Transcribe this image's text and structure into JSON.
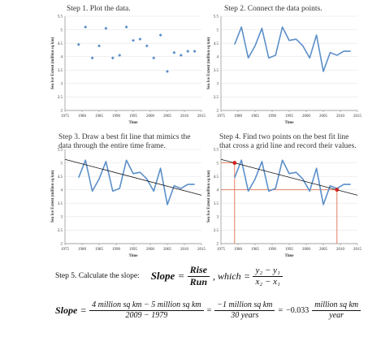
{
  "steps": [
    {
      "title_lines": [
        "Step 1. Plot the data."
      ]
    },
    {
      "title_lines": [
        "Step 2. Connect the data points."
      ]
    },
    {
      "title_lines": [
        "Step 3. Draw a best fit line that mimics the",
        "data through the entire time frame."
      ]
    },
    {
      "title_lines": [
        "Step 4. Find two points on the best fit line",
        "that cross a grid line and record their values."
      ]
    }
  ],
  "colors": {
    "data": "#5b8fc9",
    "fit_line": "#111111",
    "marker": "#d42020",
    "guide": "#e07050"
  },
  "chart_data": [
    {
      "type": "scatter",
      "title": "Step 1. Plot the data.",
      "xlabel": "Time",
      "ylabel": "Sea Ice Extent (million sq km)",
      "xlim": [
        1975,
        2015
      ],
      "ylim": [
        2,
        5.5
      ],
      "xticks": [
        1975,
        1980,
        1985,
        1990,
        1995,
        2000,
        2005,
        2010,
        2015
      ],
      "yticks": [
        2,
        2.5,
        3,
        3.5,
        4,
        4.5,
        5,
        5.5
      ],
      "series": [
        {
          "x": [
            1979,
            1981,
            1983,
            1985,
            1987,
            1989,
            1991,
            1993,
            1995,
            1997,
            1999,
            2001,
            2003,
            2005,
            2007,
            2009,
            2011,
            2013
          ],
          "y": [
            4.45,
            5.1,
            3.95,
            4.4,
            5.05,
            3.95,
            4.05,
            5.1,
            4.6,
            4.65,
            4.4,
            3.95,
            4.8,
            3.45,
            4.15,
            4.05,
            4.2,
            4.2
          ]
        }
      ]
    },
    {
      "type": "line",
      "title": "Step 2. Connect the data points.",
      "xlabel": "Time",
      "ylabel": "Sea Ice Extent (million sq km)",
      "xlim": [
        1975,
        2015
      ],
      "ylim": [
        2,
        5.5
      ],
      "xticks": [
        1975,
        1980,
        1985,
        1990,
        1995,
        2000,
        2005,
        2010,
        2015
      ],
      "yticks": [
        2,
        2.5,
        3,
        3.5,
        4,
        4.5,
        5,
        5.5
      ],
      "series": [
        {
          "x": [
            1979,
            1981,
            1983,
            1985,
            1987,
            1989,
            1991,
            1993,
            1995,
            1997,
            1999,
            2001,
            2003,
            2005,
            2007,
            2009,
            2011,
            2013
          ],
          "y": [
            4.45,
            5.1,
            3.95,
            4.4,
            5.05,
            3.95,
            4.05,
            5.1,
            4.6,
            4.65,
            4.4,
            3.95,
            4.8,
            3.45,
            4.15,
            4.05,
            4.2,
            4.2
          ]
        }
      ]
    },
    {
      "type": "line",
      "title": "Step 3. Draw a best fit line that mimics the data through the entire time frame.",
      "xlabel": "Time",
      "ylabel": "Sea Ice Extent (million sq km)",
      "xlim": [
        1975,
        2015
      ],
      "ylim": [
        2,
        5.5
      ],
      "xticks": [
        1975,
        1980,
        1985,
        1990,
        1995,
        2000,
        2005,
        2010,
        2015
      ],
      "yticks": [
        2,
        2.5,
        3,
        3.5,
        4,
        4.5,
        5,
        5.5
      ],
      "series": [
        {
          "x": [
            1979,
            1981,
            1983,
            1985,
            1987,
            1989,
            1991,
            1993,
            1995,
            1997,
            1999,
            2001,
            2003,
            2005,
            2007,
            2009,
            2011,
            2013
          ],
          "y": [
            4.45,
            5.1,
            3.95,
            4.4,
            5.05,
            3.95,
            4.05,
            5.1,
            4.6,
            4.65,
            4.4,
            3.95,
            4.8,
            3.45,
            4.15,
            4.05,
            4.2,
            4.2
          ]
        }
      ],
      "fit_line": {
        "x": [
          1975,
          2015
        ],
        "y": [
          5.13,
          3.8
        ]
      }
    },
    {
      "type": "line",
      "title": "Step 4. Find two points on the best fit line that cross a grid line and record their values.",
      "xlabel": "Time",
      "ylabel": "Sea Ice Extent (million sq km)",
      "xlim": [
        1975,
        2015
      ],
      "ylim": [
        2,
        5.5
      ],
      "xticks": [
        1975,
        1980,
        1985,
        1990,
        1995,
        2000,
        2005,
        2010,
        2015
      ],
      "yticks": [
        2,
        2.5,
        3,
        3.5,
        4,
        4.5,
        5,
        5.5
      ],
      "series": [
        {
          "x": [
            1979,
            1981,
            1983,
            1985,
            1987,
            1989,
            1991,
            1993,
            1995,
            1997,
            1999,
            2001,
            2003,
            2005,
            2007,
            2009,
            2011,
            2013
          ],
          "y": [
            4.45,
            5.1,
            3.95,
            4.4,
            5.05,
            3.95,
            4.05,
            5.1,
            4.6,
            4.65,
            4.4,
            3.95,
            4.8,
            3.45,
            4.15,
            4.05,
            4.2,
            4.2
          ]
        }
      ],
      "fit_line": {
        "x": [
          1975,
          2015
        ],
        "y": [
          5.13,
          3.8
        ]
      },
      "marked_points": [
        {
          "x": 1979,
          "y": 5
        },
        {
          "x": 2009,
          "y": 4
        }
      ]
    }
  ],
  "step5": {
    "label": "Step 5. Calculate the slope:",
    "slope_word": "Slope",
    "rise": "Rise",
    "run": "Run",
    "which": ", which",
    "num_formula": "y₂ − y₁",
    "den_formula": "x₂ − x₁",
    "num_values": "4 million sq km − 5 million sq km",
    "den_values": "2009 − 1979",
    "num_result": "−1 million sq km",
    "den_result": "30 years",
    "result_coef": "−0.033",
    "unit_num": "million sq km",
    "unit_den": "year"
  }
}
